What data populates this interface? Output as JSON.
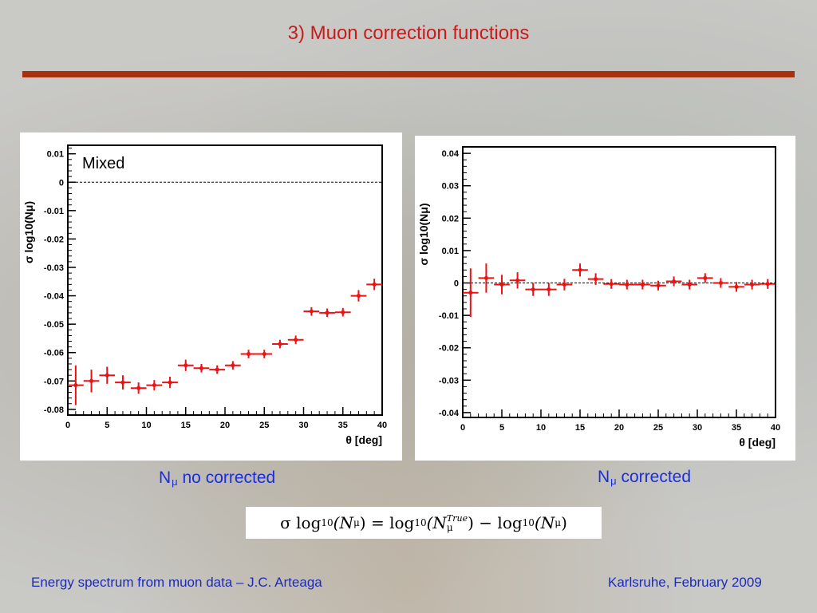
{
  "slide": {
    "title": "3) Muon correction functions",
    "footer_left": "Energy spectrum from muon data – J.C. Arteaga",
    "footer_right": "Karlsruhe,  February 2009"
  },
  "captions": {
    "left_main": "N",
    "left_sub": "μ",
    "left_rest": " no corrected",
    "right_main": "N",
    "right_sub": "μ",
    "right_rest": " corrected"
  },
  "formula": {
    "sigma": "σ",
    "log": "log",
    "base": "10",
    "lhs_arg": "(N",
    "mu": "μ",
    "close": ")",
    "eq": "=",
    "sup_true": "True",
    "minus": "−"
  },
  "colors": {
    "marker": "#ee1111",
    "axis": "#000000",
    "caption": "#1a2ee0",
    "title": "#cc1a1a"
  },
  "chart_data": [
    {
      "type": "scatter",
      "title": "",
      "annotation": "Mixed",
      "xlabel": "θ [deg]",
      "ylabel": "σ log10(Nμ)",
      "xlim": [
        0,
        40
      ],
      "ylim": [
        -0.082,
        0.013
      ],
      "xticks": [
        0,
        5,
        10,
        15,
        20,
        25,
        30,
        35,
        40
      ],
      "xtick_labels": [
        "0",
        "5",
        "10",
        "15",
        "20",
        "25",
        "30",
        "35",
        "40"
      ],
      "yticks": [
        0.01,
        0,
        -0.01,
        -0.02,
        -0.03,
        -0.04,
        -0.05,
        -0.06,
        -0.07,
        -0.08
      ],
      "ytick_labels": [
        "0.01",
        "0",
        "-0.01",
        "-0.02",
        "-0.03",
        "-0.04",
        "-0.05",
        "-0.06",
        "-0.07",
        "-0.08"
      ],
      "reference_line": 0,
      "x": [
        1,
        3,
        5,
        7,
        9,
        11,
        13,
        15,
        17,
        19,
        21,
        23,
        25,
        27,
        29,
        31,
        33,
        35,
        37,
        39
      ],
      "y": [
        -0.0715,
        -0.07,
        -0.068,
        -0.0705,
        -0.0725,
        -0.0715,
        -0.0705,
        -0.0645,
        -0.0655,
        -0.066,
        -0.0645,
        -0.0605,
        -0.0605,
        -0.057,
        -0.0555,
        -0.0455,
        -0.046,
        -0.0458,
        -0.04,
        -0.036
      ],
      "yerr": [
        0.007,
        0.004,
        0.003,
        0.0025,
        0.002,
        0.0018,
        0.002,
        0.002,
        0.0015,
        0.0015,
        0.0015,
        0.0015,
        0.0015,
        0.0015,
        0.0015,
        0.0015,
        0.0015,
        0.0015,
        0.002,
        0.002
      ],
      "xerr": 1
    },
    {
      "type": "scatter",
      "title": "",
      "xlabel": "θ [deg]",
      "ylabel": "σ log10(Nμ)",
      "xlim": [
        0,
        40
      ],
      "ylim": [
        -0.0415,
        0.042
      ],
      "xticks": [
        0,
        5,
        10,
        15,
        20,
        25,
        30,
        35,
        40
      ],
      "xtick_labels": [
        "0",
        "5",
        "10",
        "15",
        "20",
        "25",
        "30",
        "35",
        "40"
      ],
      "yticks": [
        0.04,
        0.03,
        0.02,
        0.01,
        0,
        -0.01,
        -0.02,
        -0.03,
        -0.04
      ],
      "ytick_labels": [
        "0.04",
        "0.03",
        "0.02",
        "0.01",
        "0",
        "-0.01",
        "-0.02",
        "-0.03",
        "-0.04"
      ],
      "reference_line": 0,
      "x": [
        1,
        3,
        5,
        7,
        9,
        11,
        13,
        15,
        17,
        19,
        21,
        23,
        25,
        27,
        29,
        31,
        33,
        35,
        37,
        39
      ],
      "y": [
        -0.003,
        0.0015,
        -0.0005,
        0.0008,
        -0.002,
        -0.002,
        -0.0005,
        0.004,
        0.0012,
        -0.0003,
        -0.0005,
        -0.0005,
        -0.0008,
        0.0005,
        -0.0005,
        0.0015,
        0.0,
        -0.0012,
        -0.0005,
        -0.0003
      ],
      "yerr": [
        0.0075,
        0.0045,
        0.003,
        0.0025,
        0.002,
        0.002,
        0.0018,
        0.002,
        0.0018,
        0.0015,
        0.0015,
        0.0015,
        0.0015,
        0.0015,
        0.0015,
        0.0015,
        0.0015,
        0.0015,
        0.0015,
        0.0015
      ],
      "xerr": 1
    }
  ]
}
